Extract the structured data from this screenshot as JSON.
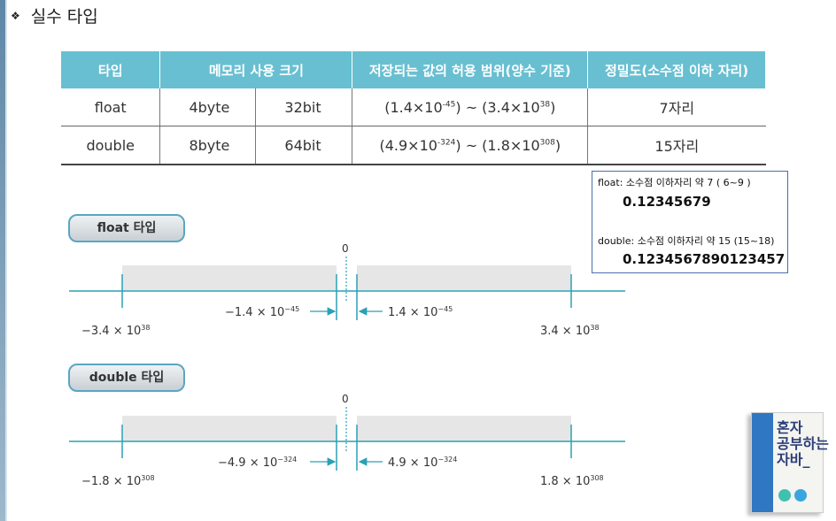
{
  "slide": {
    "bullet": "❖",
    "title": "실수 타입"
  },
  "table": {
    "headers": [
      "타입",
      "메모리 사용 크기",
      "저장되는 값의 허용 범위(양수 기준)",
      "정밀도(소수점 이하 자리)"
    ],
    "rows": [
      {
        "type": "float",
        "bytes": "4byte",
        "bits": "32bit",
        "range_lo_mant": "1.4",
        "range_lo_exp": "-45",
        "range_hi_mant": "3.4",
        "range_hi_exp": "38",
        "precision": "7자리"
      },
      {
        "type": "double",
        "bytes": "8byte",
        "bits": "64bit",
        "range_lo_mant": "4.9",
        "range_lo_exp": "-324",
        "range_hi_mant": "1.8",
        "range_hi_exp": "308",
        "precision": "15자리"
      }
    ],
    "times_ten": "×10",
    "tilde": "~"
  },
  "note": {
    "float_label": "float: 소수점 이하자리 약 7 ( 6~9 )",
    "float_value": "0.12345679",
    "double_label": "double: 소수점 이하자리 약 15  (15~18)",
    "double_value": "0.1234567890123457"
  },
  "diagrams": {
    "float": {
      "pill": "float 타입",
      "zero": "0",
      "neg_min": "−3.4 × 10",
      "neg_min_exp": "38",
      "neg_near": "−1.4 × 10",
      "neg_near_exp": "−45",
      "pos_near": "1.4 × 10",
      "pos_near_exp": "−45",
      "pos_max": "3.4 × 10",
      "pos_max_exp": "38"
    },
    "double": {
      "pill": "double 타입",
      "zero": "0",
      "neg_min": "−1.8 × 10",
      "neg_min_exp": "308",
      "neg_near": "−4.9 × 10",
      "neg_near_exp": "−324",
      "pos_near": "4.9 × 10",
      "pos_near_exp": "−324",
      "pos_max": "1.8 × 10",
      "pos_max_exp": "308"
    }
  },
  "book": {
    "title": "혼자\n공부하는\n자바_"
  },
  "colors": {
    "header": "#68bfd1",
    "axis": "#2aa0b4",
    "band": "#e6e6e6",
    "note_border": "#4b6eaa"
  }
}
